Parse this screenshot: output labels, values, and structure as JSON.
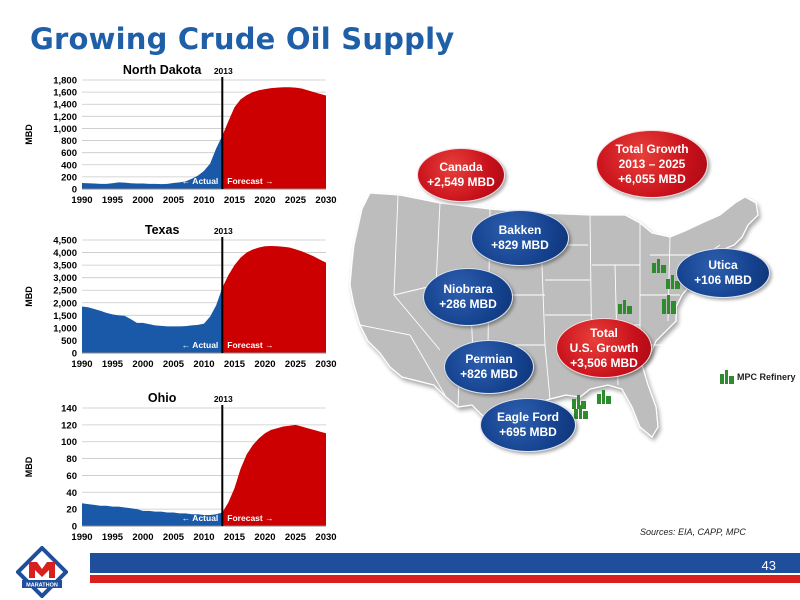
{
  "title": "Growing Crude Oil Supply",
  "chart_data": [
    {
      "type": "area",
      "title": "North Dakota",
      "ylabel": "MBD",
      "marker_label": "2013",
      "actual_label": "← Actual",
      "forecast_label": "Forecast →",
      "xlim": [
        1990,
        2030
      ],
      "ylim": [
        0,
        1800
      ],
      "yticks": [
        0,
        200,
        400,
        600,
        800,
        1000,
        1200,
        1400,
        1600,
        1800
      ],
      "ytick_labels": [
        "0",
        "200",
        "400",
        "600",
        "800",
        "1,000",
        "1,200",
        "1,400",
        "1,600",
        "1,800"
      ],
      "xticks": [
        1990,
        1995,
        2000,
        2005,
        2010,
        2015,
        2020,
        2025,
        2030
      ],
      "split_year": 2013,
      "x": [
        1990,
        1991,
        1992,
        1993,
        1994,
        1995,
        1996,
        1997,
        1998,
        1999,
        2000,
        2001,
        2002,
        2003,
        2004,
        2005,
        2006,
        2007,
        2008,
        2009,
        2010,
        2011,
        2012,
        2013,
        2014,
        2015,
        2016,
        2017,
        2018,
        2019,
        2020,
        2021,
        2022,
        2023,
        2024,
        2025,
        2026,
        2027,
        2028,
        2029,
        2030
      ],
      "values": [
        100,
        95,
        90,
        85,
        85,
        95,
        110,
        105,
        95,
        90,
        90,
        85,
        85,
        80,
        85,
        100,
        110,
        125,
        170,
        220,
        300,
        420,
        670,
        880,
        1120,
        1350,
        1480,
        1550,
        1600,
        1630,
        1650,
        1665,
        1675,
        1680,
        1680,
        1675,
        1660,
        1630,
        1600,
        1570,
        1545
      ],
      "colors": {
        "actual": "#1a58a8",
        "forecast": "#cc0000"
      }
    },
    {
      "type": "area",
      "title": "Texas",
      "ylabel": "MBD",
      "marker_label": "2013",
      "actual_label": "← Actual",
      "forecast_label": "Forecast →",
      "xlim": [
        1990,
        2030
      ],
      "ylim": [
        0,
        4500
      ],
      "yticks": [
        0,
        500,
        1000,
        1500,
        2000,
        2500,
        3000,
        3500,
        4000,
        4500
      ],
      "ytick_labels": [
        "0",
        "500",
        "1,000",
        "1,500",
        "2,000",
        "2,500",
        "3,000",
        "3,500",
        "4,000",
        "4,500"
      ],
      "xticks": [
        1990,
        1995,
        2000,
        2005,
        2010,
        2015,
        2020,
        2025,
        2030
      ],
      "split_year": 2013,
      "x": [
        1990,
        1991,
        1992,
        1993,
        1994,
        1995,
        1996,
        1997,
        1998,
        1999,
        2000,
        2001,
        2002,
        2003,
        2004,
        2005,
        2006,
        2007,
        2008,
        2009,
        2010,
        2011,
        2012,
        2013,
        2014,
        2015,
        2016,
        2017,
        2018,
        2019,
        2020,
        2021,
        2022,
        2023,
        2024,
        2025,
        2026,
        2027,
        2028,
        2029,
        2030
      ],
      "values": [
        1850,
        1820,
        1750,
        1680,
        1600,
        1540,
        1500,
        1480,
        1350,
        1200,
        1200,
        1150,
        1100,
        1080,
        1060,
        1060,
        1060,
        1070,
        1100,
        1120,
        1170,
        1450,
        1900,
        2600,
        3100,
        3500,
        3800,
        4000,
        4120,
        4200,
        4250,
        4260,
        4250,
        4230,
        4200,
        4130,
        4050,
        3950,
        3850,
        3720,
        3600
      ],
      "colors": {
        "actual": "#1a58a8",
        "forecast": "#cc0000"
      }
    },
    {
      "type": "area",
      "title": "Ohio",
      "ylabel": "MBD",
      "marker_label": "2013",
      "actual_label": "← Actual",
      "forecast_label": "Forecast →",
      "xlim": [
        1990,
        2030
      ],
      "ylim": [
        0,
        140
      ],
      "yticks": [
        0,
        20,
        40,
        60,
        80,
        100,
        120,
        140
      ],
      "ytick_labels": [
        "0",
        "20",
        "40",
        "60",
        "80",
        "100",
        "120",
        "140"
      ],
      "xticks": [
        1990,
        1995,
        2000,
        2005,
        2010,
        2015,
        2020,
        2025,
        2030
      ],
      "split_year": 2013,
      "x": [
        1990,
        1991,
        1992,
        1993,
        1994,
        1995,
        1996,
        1997,
        1998,
        1999,
        2000,
        2001,
        2002,
        2003,
        2004,
        2005,
        2006,
        2007,
        2008,
        2009,
        2010,
        2011,
        2012,
        2013,
        2014,
        2015,
        2016,
        2017,
        2018,
        2019,
        2020,
        2021,
        2022,
        2023,
        2024,
        2025,
        2026,
        2027,
        2028,
        2029,
        2030
      ],
      "values": [
        27,
        26,
        25,
        24,
        24,
        23,
        23,
        22,
        21,
        20,
        18,
        18,
        17,
        17,
        16,
        16,
        15,
        15,
        14,
        14,
        13,
        13,
        14,
        16,
        28,
        45,
        68,
        85,
        96,
        104,
        110,
        114,
        116,
        118,
        119,
        120,
        118,
        116,
        114,
        112,
        110
      ],
      "colors": {
        "actual": "#1a58a8",
        "forecast": "#cc0000"
      }
    }
  ],
  "bubbles": [
    {
      "label": "Canada\n+2,549 MBD",
      "color": "red"
    },
    {
      "label": "Total Growth\n2013 – 2025\n+6,055 MBD",
      "color": "red"
    },
    {
      "label": "Bakken\n+829 MBD",
      "color": "blue"
    },
    {
      "label": "Utica\n+106 MBD",
      "color": "blue"
    },
    {
      "label": "Niobrara\n+286 MBD",
      "color": "blue"
    },
    {
      "label": "Total\nU.S. Growth\n+3,506 MBD",
      "color": "red"
    },
    {
      "label": "Permian\n+826 MBD",
      "color": "blue"
    },
    {
      "label": "Eagle Ford\n+695 MBD",
      "color": "blue"
    }
  ],
  "legend_label": "MPC Refinery",
  "sources": "Sources:  EIA, CAPP, MPC",
  "page_number": "43",
  "logo_text": "MARATHON",
  "colors": {
    "title": "#1f5fa8",
    "footer_blue": "#1f4e9c",
    "footer_red": "#d8201e",
    "refinery": "#2e8b2e",
    "map": "#bdbdbd"
  }
}
